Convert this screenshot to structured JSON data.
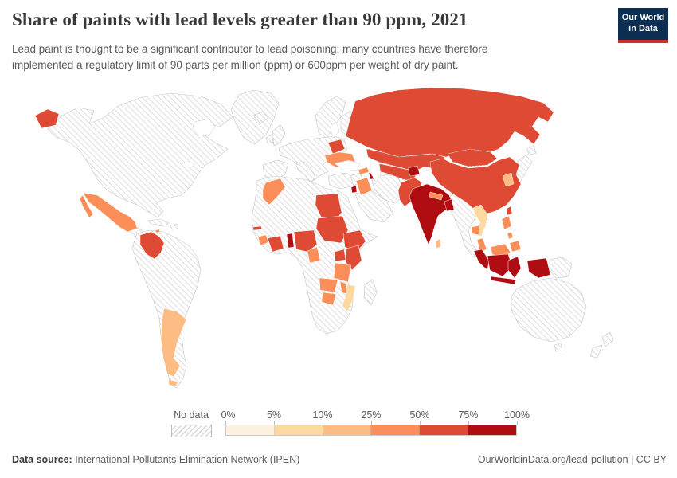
{
  "header": {
    "title": "Share of paints with lead levels greater than 90 ppm, 2021",
    "subtitle": "Lead paint is thought to be a significant contributor to lead poisoning; many countries have therefore implemented a regulatory limit of 90 parts per million (ppm) or 600ppm per weight of dry paint."
  },
  "logo": {
    "line1": "Our World",
    "line2": "in Data",
    "bg_color": "#0d2e53",
    "accent_color": "#d42b2b"
  },
  "legend": {
    "no_data_label": "No data",
    "tick_labels": [
      "0%",
      "5%",
      "10%",
      "25%",
      "50%",
      "75%",
      "100%"
    ]
  },
  "footer": {
    "source_label": "Data source:",
    "source_value": " International Pollutants Elimination Network (IPEN)",
    "right_text": "OurWorldinData.org/lead-pollution | CC BY"
  },
  "chart_data": {
    "type": "choropleth_map",
    "title": "Share of paints with lead levels greater than 90 ppm",
    "year": 2021,
    "unit": "%",
    "legend_bins": [
      {
        "range": "0-5%",
        "color": "#fdf0dc"
      },
      {
        "range": "5-10%",
        "color": "#fdd9a0"
      },
      {
        "range": "10-25%",
        "color": "#fdbc84"
      },
      {
        "range": "25-50%",
        "color": "#fc8e59"
      },
      {
        "range": "50-75%",
        "color": "#de4a33"
      },
      {
        "range": "75-100%",
        "color": "#b00d12"
      }
    ],
    "no_data": {
      "label": "No data",
      "style": "hatched"
    },
    "countries": [
      {
        "name": "India",
        "bin": "75-100%"
      },
      {
        "name": "Indonesia",
        "bin": "75-100%"
      },
      {
        "name": "Bangladesh",
        "bin": "75-100%"
      },
      {
        "name": "Tajikistan",
        "bin": "75-100%"
      },
      {
        "name": "Azerbaijan",
        "bin": "75-100%"
      },
      {
        "name": "Benin",
        "bin": "75-100%"
      },
      {
        "name": "Jordan",
        "bin": "75-100%"
      },
      {
        "name": "Russia",
        "bin": "50-75%"
      },
      {
        "name": "China",
        "bin": "50-75%"
      },
      {
        "name": "Kazakhstan",
        "bin": "50-75%"
      },
      {
        "name": "Mongolia",
        "bin": "50-75%"
      },
      {
        "name": "Uzbekistan",
        "bin": "50-75%"
      },
      {
        "name": "Belarus",
        "bin": "50-75%"
      },
      {
        "name": "Pakistan",
        "bin": "50-75%"
      },
      {
        "name": "Egypt",
        "bin": "50-75%"
      },
      {
        "name": "Sudan",
        "bin": "50-75%"
      },
      {
        "name": "Ethiopia",
        "bin": "50-75%"
      },
      {
        "name": "Kenya",
        "bin": "50-75%"
      },
      {
        "name": "Uganda",
        "bin": "50-75%"
      },
      {
        "name": "Nigeria",
        "bin": "50-75%"
      },
      {
        "name": "Cote d'Ivoire",
        "bin": "50-75%"
      },
      {
        "name": "Gambia",
        "bin": "50-75%"
      },
      {
        "name": "Colombia",
        "bin": "50-75%"
      },
      {
        "name": "Taiwan",
        "bin": "50-75%"
      },
      {
        "name": "Mexico",
        "bin": "25-50%"
      },
      {
        "name": "Ukraine",
        "bin": "25-50%"
      },
      {
        "name": "Morocco",
        "bin": "25-50%"
      },
      {
        "name": "Iraq",
        "bin": "25-50%"
      },
      {
        "name": "Georgia",
        "bin": "25-50%"
      },
      {
        "name": "Moldova",
        "bin": "25-50%"
      },
      {
        "name": "Nepal",
        "bin": "25-50%"
      },
      {
        "name": "Cambodia",
        "bin": "25-50%"
      },
      {
        "name": "Philippines",
        "bin": "25-50%"
      },
      {
        "name": "Malaysia",
        "bin": "25-50%"
      },
      {
        "name": "Sierra Leone",
        "bin": "25-50%"
      },
      {
        "name": "Cameroon",
        "bin": "25-50%"
      },
      {
        "name": "Tanzania",
        "bin": "25-50%"
      },
      {
        "name": "Zambia",
        "bin": "25-50%"
      },
      {
        "name": "Zimbabwe",
        "bin": "25-50%"
      },
      {
        "name": "Malawi",
        "bin": "25-50%"
      },
      {
        "name": "Jamaica",
        "bin": "25-50%"
      },
      {
        "name": "Argentina",
        "bin": "10-25%"
      },
      {
        "name": "South Korea",
        "bin": "10-25%"
      },
      {
        "name": "Sri Lanka",
        "bin": "10-25%"
      },
      {
        "name": "Mozambique",
        "bin": "5-10%"
      },
      {
        "name": "Vietnam",
        "bin": "5-10%"
      }
    ]
  }
}
